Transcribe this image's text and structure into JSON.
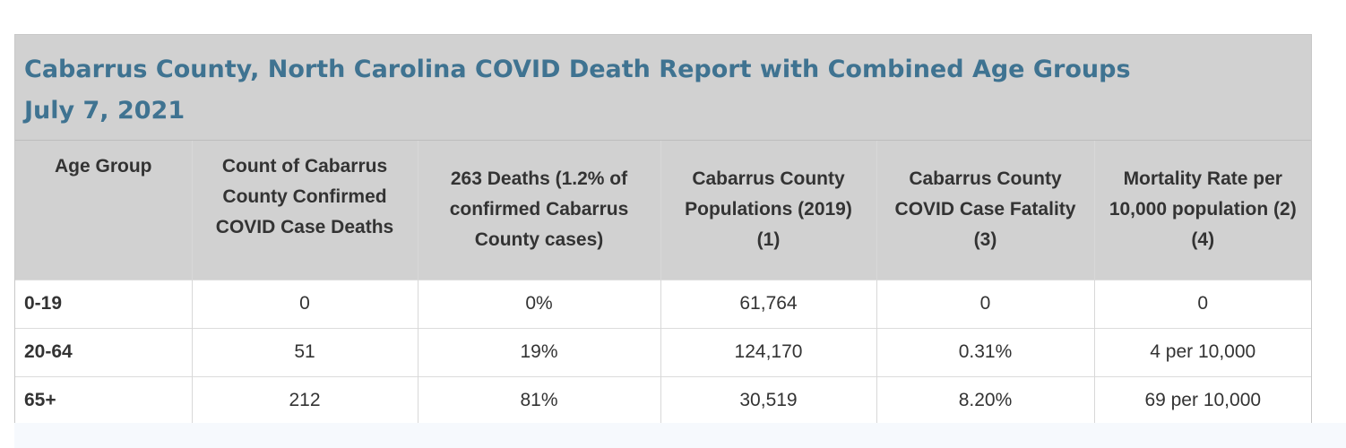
{
  "report": {
    "title_line1": "Cabarrus County, North Carolina COVID Death Report with Combined Age Groups",
    "title_line2": "July 7, 2021"
  },
  "table": {
    "headers": [
      "Age Group",
      "Count of Cabarrus County Confirmed COVID Case Deaths",
      "263 Deaths (1.2% of confirmed Cabarrus County cases)",
      "Cabarrus County Populations (2019) (1)",
      "Cabarrus County COVID Case Fatality (3)",
      "Mortality Rate per 10,000 population (2) (4)"
    ],
    "rows": [
      [
        "0-19",
        "0",
        "0%",
        "61,764",
        "0",
        "0"
      ],
      [
        "20-64",
        "51",
        "19%",
        "124,170",
        "0.31%",
        "4 per 10,000"
      ],
      [
        "65+",
        "212",
        "81%",
        "30,519",
        "8.20%",
        "69 per 10,000"
      ]
    ]
  }
}
